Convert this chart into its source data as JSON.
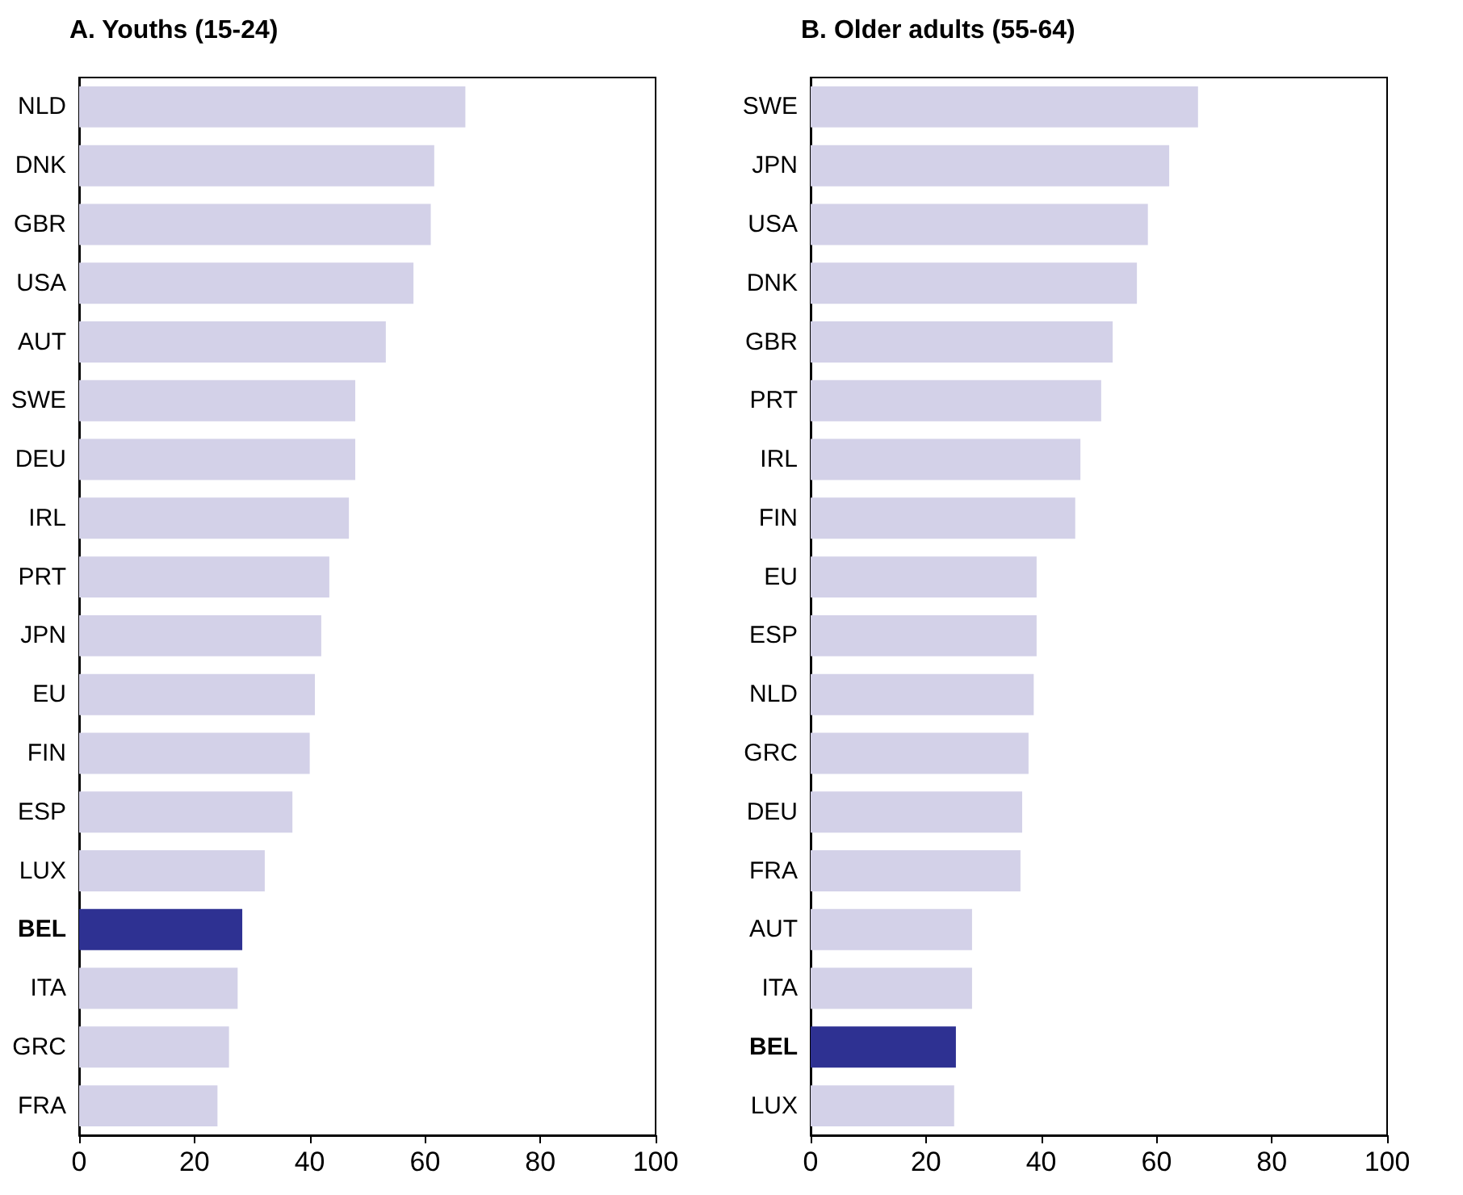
{
  "chart_data": [
    {
      "type": "bar",
      "orientation": "horizontal",
      "title": "A. Youths (15-24)",
      "categories": [
        "NLD",
        "DNK",
        "GBR",
        "USA",
        "AUT",
        "SWE",
        "DEU",
        "IRL",
        "PRT",
        "JPN",
        "EU",
        "FIN",
        "ESP",
        "LUX",
        "BEL",
        "ITA",
        "GRC",
        "FRA"
      ],
      "values": [
        67,
        61.6,
        61,
        58,
        53.2,
        47.9,
        47.9,
        46.8,
        43.4,
        42,
        40.9,
        40,
        37,
        32.2,
        28.3,
        27.5,
        26,
        24
      ],
      "colors": [
        "#d3d1e8",
        "#d3d1e8",
        "#d3d1e8",
        "#d3d1e8",
        "#d3d1e8",
        "#d3d1e8",
        "#d3d1e8",
        "#d3d1e8",
        "#d3d1e8",
        "#d3d1e8",
        "#d3d1e8",
        "#d3d1e8",
        "#d3d1e8",
        "#d3d1e8",
        "#2e3192",
        "#d3d1e8",
        "#d3d1e8",
        "#d3d1e8"
      ],
      "xlim": [
        0,
        100
      ],
      "xticks": [
        0,
        20,
        40,
        60,
        80,
        100
      ],
      "grid": false
    },
    {
      "type": "bar",
      "orientation": "horizontal",
      "title": "B. Older adults (55-64)",
      "categories": [
        "SWE",
        "JPN",
        "USA",
        "DNK",
        "GBR",
        "PRT",
        "IRL",
        "FIN",
        "EU",
        "ESP",
        "NLD",
        "GRC",
        "DEU",
        "FRA",
        "AUT",
        "ITA",
        "BEL",
        "LUX"
      ],
      "values": [
        67.2,
        62.2,
        58.5,
        56.6,
        52.4,
        50.4,
        46.8,
        45.9,
        39.2,
        39.2,
        38.7,
        37.8,
        36.7,
        36.4,
        28,
        28,
        25.2,
        24.9
      ],
      "colors": [
        "#d3d1e8",
        "#d3d1e8",
        "#d3d1e8",
        "#d3d1e8",
        "#d3d1e8",
        "#d3d1e8",
        "#d3d1e8",
        "#d3d1e8",
        "#d3d1e8",
        "#d3d1e8",
        "#d3d1e8",
        "#d3d1e8",
        "#d3d1e8",
        "#d3d1e8",
        "#d3d1e8",
        "#d3d1e8",
        "#2e3192",
        "#d3d1e8"
      ],
      "xlim": [
        0,
        100
      ],
      "xticks": [
        0,
        20,
        40,
        60,
        80,
        100
      ],
      "grid": false
    }
  ]
}
